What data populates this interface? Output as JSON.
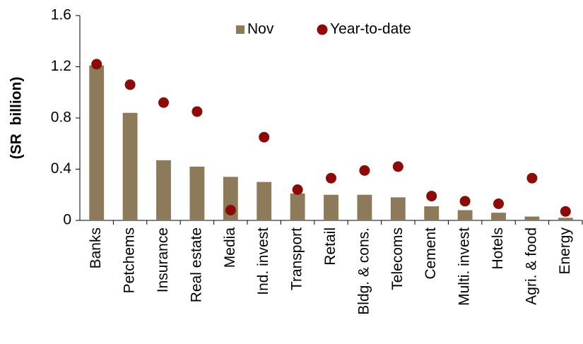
{
  "chart_data": {
    "type": "bar",
    "y_label": "(SR  billion)",
    "categories": [
      "Banks",
      "Petchems",
      "Insurance",
      "Real estate",
      "Media",
      "Ind. invest",
      "Transport",
      "Retail",
      "Bldg. & cons.",
      "Telecoms",
      "Cement",
      "Multi. invest",
      "Hotels",
      "Agri. & food",
      "Energy"
    ],
    "series": [
      {
        "name": "Nov",
        "type": "bar",
        "color": "#8c7a5b",
        "values": [
          1.21,
          0.84,
          0.47,
          0.42,
          0.34,
          0.3,
          0.21,
          0.2,
          0.2,
          0.18,
          0.11,
          0.08,
          0.06,
          0.03,
          0.02
        ]
      },
      {
        "name": "Year-to-date",
        "type": "scatter",
        "color": "#8b0a0a",
        "values": [
          1.22,
          1.06,
          0.92,
          0.85,
          0.08,
          0.65,
          0.24,
          0.33,
          0.39,
          0.42,
          0.19,
          0.15,
          0.13,
          0.33,
          0.07
        ]
      }
    ],
    "ylim": [
      0,
      1.6
    ],
    "yticks": [
      0,
      0.4,
      0.8,
      1.2,
      1.6
    ],
    "grid": false,
    "legend": "top"
  }
}
